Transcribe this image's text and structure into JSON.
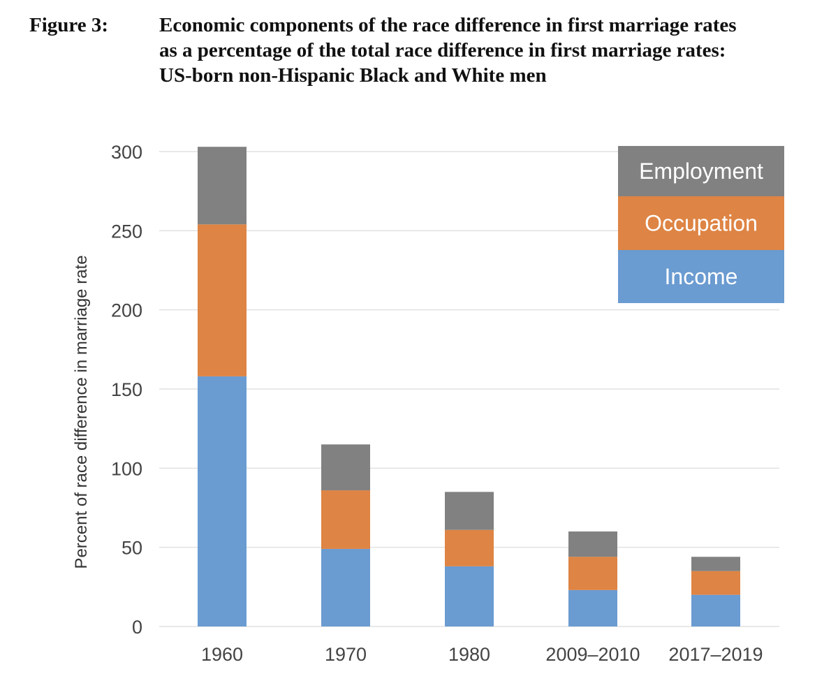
{
  "figure": {
    "label": "Figure 3:",
    "title_lines": [
      "Economic components of the race difference in first marriage rates",
      "as a percentage of the total race difference in first marriage rates:",
      "US-born non-Hispanic Black and White men"
    ]
  },
  "chart_data": {
    "type": "bar",
    "stacked": true,
    "categories": [
      "1960",
      "1970",
      "1980",
      "2009–2010",
      "2017–2019"
    ],
    "series": [
      {
        "name": "Income",
        "color": "#6A9BD1",
        "values": [
          158,
          49,
          38,
          23,
          20
        ]
      },
      {
        "name": "Occupation",
        "color": "#DE8444",
        "values": [
          96,
          37,
          23,
          21,
          15
        ]
      },
      {
        "name": "Employment",
        "color": "#818181",
        "values": [
          49,
          29,
          24,
          16,
          9
        ]
      }
    ],
    "ylabel": "Percent of race difference in marriage rate",
    "xlabel": "",
    "ylim": [
      0,
      300
    ],
    "yticks": [
      0,
      50,
      100,
      150,
      200,
      250,
      300
    ],
    "grid": true,
    "legend": {
      "placement": "top-right",
      "order": [
        "Employment",
        "Occupation",
        "Income"
      ]
    }
  }
}
